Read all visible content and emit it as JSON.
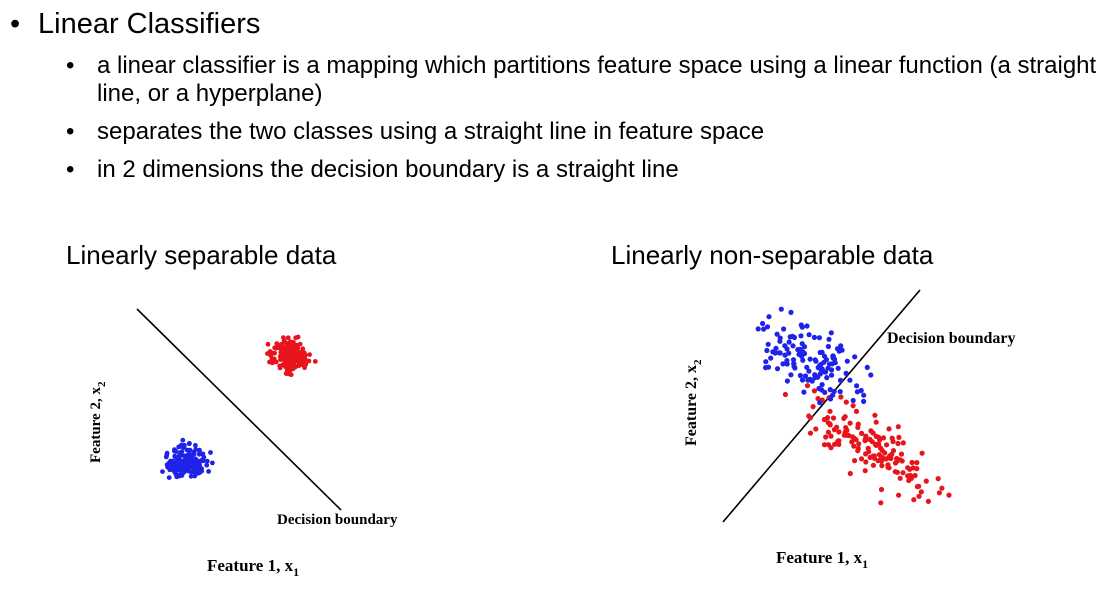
{
  "slide": {
    "heading": "Linear Classifiers",
    "bullet_glyph": "•",
    "points": [
      "a linear classifier is a mapping which partitions feature space using a linear function (a straight line, or a hyperplane)",
      "separates the two classes using a straight line in feature space",
      "in 2 dimensions the decision boundary is a straight line"
    ]
  },
  "figures": {
    "left_title": "Linearly separable data",
    "right_title": "Linearly non-separable data",
    "xlabel": "Feature 1,  x",
    "xlabel_sub": "1",
    "ylabel": "Feature 2,  x",
    "ylabel_sub": "2",
    "boundary_label": "Decision boundary"
  },
  "colors": {
    "class_a": "#1f22e8",
    "class_b": "#e8141c",
    "line": "#000000"
  }
}
